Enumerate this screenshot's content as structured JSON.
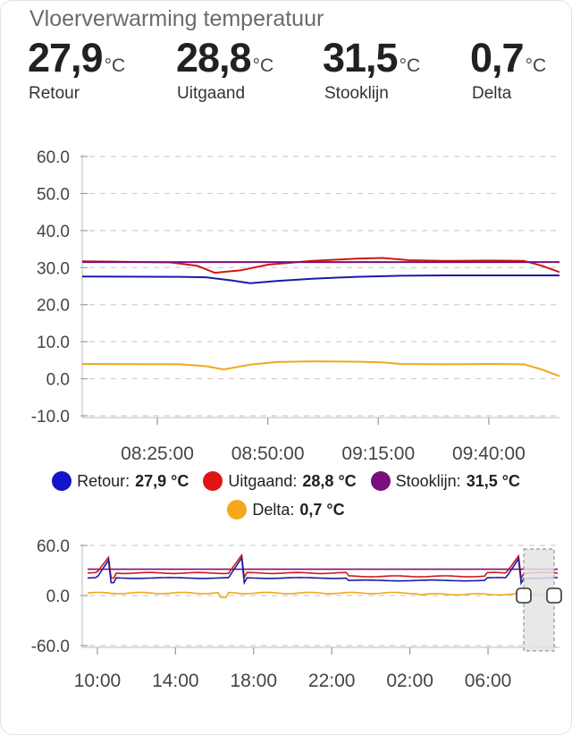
{
  "title": "Vloerverwarming temperatuur",
  "stats": [
    {
      "value": "27,9",
      "unit": "°C",
      "label": "Retour",
      "color": "#1a1aa6"
    },
    {
      "value": "28,8",
      "unit": "°C",
      "label": "Uitgaand",
      "color": "#d01717"
    },
    {
      "value": "31,5",
      "unit": "°C",
      "label": "Stooklijn",
      "color": "#7a0f7e"
    },
    {
      "value": "0,7",
      "unit": "°C",
      "label": "Delta",
      "color": "#f0a81c"
    }
  ],
  "legend": [
    {
      "name": "Retour:",
      "value": "27,9 °C",
      "color": "#1414c8"
    },
    {
      "name": "Uitgaand:",
      "value": "28,8 °C",
      "color": "#e01414"
    },
    {
      "name": "Stooklijn:",
      "value": "31,5 °C",
      "color": "#7a0f7e"
    },
    {
      "name": "Delta:",
      "value": "0,7 °C",
      "color": "#f5a81c"
    }
  ],
  "chart_data": [
    {
      "type": "line",
      "ylim": [
        -10,
        60
      ],
      "yticks": [
        "60.0",
        "50.0",
        "40.0",
        "30.0",
        "20.0",
        "10.0",
        "0.0",
        "-10.0"
      ],
      "xlim": [
        "08:08",
        "09:56"
      ],
      "xticks": [
        "08:25:00",
        "08:50:00",
        "09:15:00",
        "09:40:00"
      ],
      "grid": true,
      "series": [
        {
          "name": "Retour",
          "color": "#1a1aa6",
          "x": [
            "08:08",
            "08:30",
            "08:36",
            "08:42",
            "08:46",
            "08:52",
            "09:00",
            "09:10",
            "09:20",
            "09:30",
            "09:40",
            "09:50",
            "09:56"
          ],
          "y": [
            27.6,
            27.5,
            27.4,
            26.5,
            25.8,
            26.4,
            27.0,
            27.5,
            27.8,
            27.9,
            27.9,
            27.9,
            27.9
          ]
        },
        {
          "name": "Uitgaand",
          "color": "#d01717",
          "x": [
            "08:08",
            "08:28",
            "08:34",
            "08:38",
            "08:44",
            "08:50",
            "09:00",
            "09:10",
            "09:16",
            "09:22",
            "09:30",
            "09:40",
            "09:48",
            "09:52",
            "09:56"
          ],
          "y": [
            31.7,
            31.4,
            30.5,
            28.6,
            29.3,
            30.8,
            31.8,
            32.4,
            32.6,
            32.0,
            31.8,
            31.9,
            31.8,
            30.5,
            28.8
          ]
        },
        {
          "name": "Stooklijn",
          "color": "#7a0f7e",
          "x": [
            "08:08",
            "09:56"
          ],
          "y": [
            31.5,
            31.5
          ]
        },
        {
          "name": "Delta",
          "color": "#f0a81c",
          "x": [
            "08:08",
            "08:30",
            "08:36",
            "08:40",
            "08:46",
            "08:52",
            "09:00",
            "09:10",
            "09:16",
            "09:20",
            "09:30",
            "09:40",
            "09:48",
            "09:52",
            "09:56"
          ],
          "y": [
            4.0,
            3.9,
            3.4,
            2.5,
            3.8,
            4.5,
            4.7,
            4.6,
            4.4,
            4.0,
            3.9,
            4.0,
            3.9,
            2.5,
            0.7
          ]
        }
      ]
    },
    {
      "type": "line",
      "ylim": [
        -60,
        60
      ],
      "yticks": [
        "60.0",
        "0.0",
        "-60.0"
      ],
      "xlim": [
        "09:30",
        "09:56 (+1 day)"
      ],
      "xticks": [
        "10:00",
        "14:00",
        "18:00",
        "22:00",
        "02:00",
        "06:00"
      ],
      "selection": [
        "08:08",
        "09:56"
      ],
      "series": [
        {
          "name": "Retour",
          "color": "#1a1aa6",
          "y_typical": 24
        },
        {
          "name": "Uitgaand",
          "color": "#d01717",
          "y_typical": 27,
          "peaks": [
            50,
            50,
            48
          ]
        },
        {
          "name": "Stooklijn",
          "color": "#7a0f7e",
          "y_typical": 31.5
        },
        {
          "name": "Delta",
          "color": "#f0a81c",
          "y_typical": 3
        }
      ]
    }
  ]
}
